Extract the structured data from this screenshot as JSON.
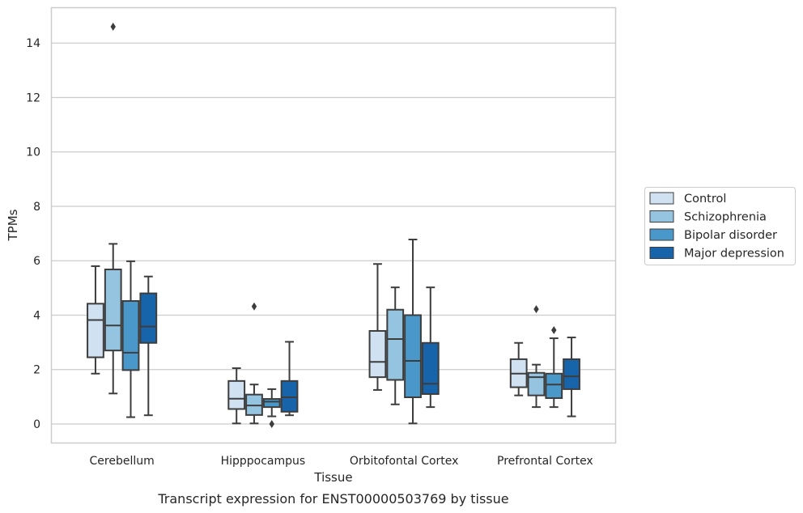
{
  "chart_data": {
    "type": "box",
    "title": "",
    "caption": "Transcript expression for ENST00000503769 by tissue",
    "xlabel": "Tissue",
    "ylabel": "TPMs",
    "ylim": [
      -0.7,
      15.3
    ],
    "yticks": [
      0,
      2,
      4,
      6,
      8,
      10,
      12,
      14
    ],
    "grid": "horizontal",
    "legend_position": "right",
    "categories": [
      "Cerebellum",
      "Hipppocampus",
      "Orbitofontal Cortex",
      "Prefrontal Cortex"
    ],
    "series": [
      {
        "name": "Control",
        "color": "#d0e1f2",
        "boxes": [
          {
            "whisker_low": 1.85,
            "q1": 2.45,
            "median": 3.82,
            "q3": 4.42,
            "whisker_high": 5.8,
            "outliers": []
          },
          {
            "whisker_low": 0.02,
            "q1": 0.55,
            "median": 0.93,
            "q3": 1.58,
            "whisker_high": 2.05,
            "outliers": []
          },
          {
            "whisker_low": 1.25,
            "q1": 1.72,
            "median": 2.28,
            "q3": 3.42,
            "whisker_high": 5.88,
            "outliers": []
          },
          {
            "whisker_low": 1.05,
            "q1": 1.35,
            "median": 1.85,
            "q3": 2.38,
            "whisker_high": 2.98,
            "outliers": []
          }
        ]
      },
      {
        "name": "Schizophrenia",
        "color": "#94c4df",
        "boxes": [
          {
            "whisker_low": 1.12,
            "q1": 2.7,
            "median": 3.62,
            "q3": 5.68,
            "whisker_high": 6.62,
            "outliers": [
              14.6
            ]
          },
          {
            "whisker_low": 0.02,
            "q1": 0.33,
            "median": 0.68,
            "q3": 1.08,
            "whisker_high": 1.45,
            "outliers": [
              4.32
            ]
          },
          {
            "whisker_low": 0.72,
            "q1": 1.62,
            "median": 3.12,
            "q3": 4.2,
            "whisker_high": 5.02,
            "outliers": []
          },
          {
            "whisker_low": 0.62,
            "q1": 1.05,
            "median": 1.72,
            "q3": 1.88,
            "whisker_high": 2.18,
            "outliers": [
              4.22
            ]
          }
        ]
      },
      {
        "name": "Bipolar disorder",
        "color": "#4a98c9",
        "boxes": [
          {
            "whisker_low": 0.25,
            "q1": 1.98,
            "median": 2.62,
            "q3": 4.52,
            "whisker_high": 5.98,
            "outliers": []
          },
          {
            "whisker_low": 0.28,
            "q1": 0.62,
            "median": 0.82,
            "q3": 0.92,
            "whisker_high": 1.28,
            "outliers": [
              0.0
            ]
          },
          {
            "whisker_low": 0.02,
            "q1": 0.98,
            "median": 2.32,
            "q3": 4.0,
            "whisker_high": 6.78,
            "outliers": []
          },
          {
            "whisker_low": 0.62,
            "q1": 0.95,
            "median": 1.45,
            "q3": 1.85,
            "whisker_high": 3.15,
            "outliers": [
              3.45
            ]
          }
        ]
      },
      {
        "name": "Major depression",
        "color": "#1764ab",
        "boxes": [
          {
            "whisker_low": 0.32,
            "q1": 2.98,
            "median": 3.58,
            "q3": 4.8,
            "whisker_high": 5.42,
            "outliers": []
          },
          {
            "whisker_low": 0.32,
            "q1": 0.45,
            "median": 0.98,
            "q3": 1.58,
            "whisker_high": 3.02,
            "outliers": []
          },
          {
            "whisker_low": 0.62,
            "q1": 1.1,
            "median": 1.48,
            "q3": 2.98,
            "whisker_high": 5.02,
            "outliers": []
          },
          {
            "whisker_low": 0.28,
            "q1": 1.28,
            "median": 1.75,
            "q3": 2.38,
            "whisker_high": 3.18,
            "outliers": []
          }
        ]
      }
    ]
  }
}
